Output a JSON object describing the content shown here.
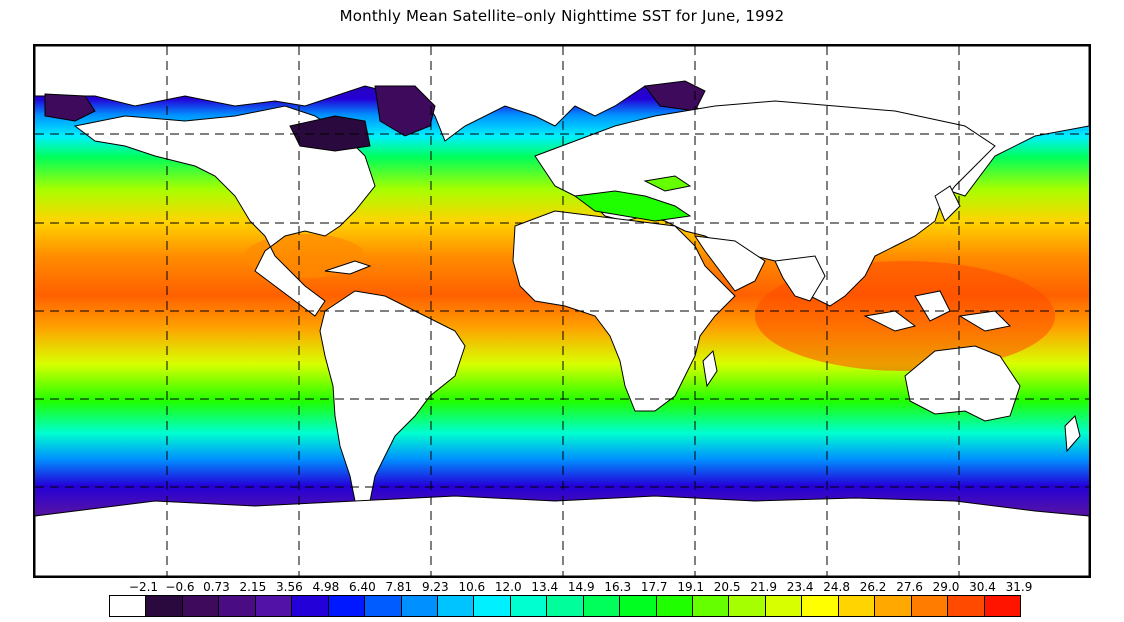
{
  "title": "Monthly Mean Satellite–only Nighttime SST for June, 1992",
  "legend": {
    "labels": [
      "−2.1",
      "−0.6",
      "0.73",
      "2.15",
      "3.56",
      "4.98",
      "6.40",
      "7.81",
      "9.23",
      "10.6",
      "12.0",
      "13.4",
      "14.9",
      "16.3",
      "17.7",
      "19.1",
      "20.5",
      "21.9",
      "23.4",
      "24.8",
      "26.2",
      "27.6",
      "29.0",
      "30.4",
      "31.9"
    ],
    "colors": [
      "#ffffff",
      "#2a0a3e",
      "#3d0a5c",
      "#4a0c82",
      "#5212a8",
      "#2400d8",
      "#0018ff",
      "#005cff",
      "#0090ff",
      "#00c4ff",
      "#00f0ff",
      "#00ffd0",
      "#00ff9a",
      "#00ff5a",
      "#00ff20",
      "#20ff00",
      "#66ff00",
      "#a6ff00",
      "#d8ff00",
      "#ffff00",
      "#ffd400",
      "#ffa800",
      "#ff7c00",
      "#ff4a00",
      "#ff1400"
    ]
  },
  "map": {
    "land_color": "#ffffff",
    "grid_style": "dashed",
    "colormap": "SST (°C)"
  }
}
